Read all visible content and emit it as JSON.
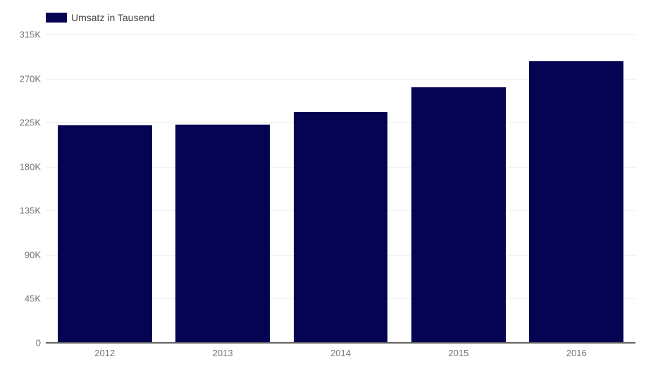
{
  "chart_data": {
    "type": "bar",
    "legend_entries": [
      "Umsatz in Tausend"
    ],
    "legend_position": "top-left",
    "categories": [
      "2012",
      "2013",
      "2014",
      "2015",
      "2016"
    ],
    "series": [
      {
        "name": "Umsatz in Tausend",
        "values": [
          222000,
          223000,
          236000,
          261000,
          288000
        ]
      }
    ],
    "ylim": [
      0,
      315000
    ],
    "yticks": [
      {
        "value": 0,
        "label": "0"
      },
      {
        "value": 45000,
        "label": "45K"
      },
      {
        "value": 90000,
        "label": "90K"
      },
      {
        "value": 135000,
        "label": "135K"
      },
      {
        "value": 180000,
        "label": "180K"
      },
      {
        "value": 225000,
        "label": "225K"
      },
      {
        "value": 270000,
        "label": "270K"
      },
      {
        "value": 315000,
        "label": "315K"
      }
    ],
    "grid": true,
    "colors": {
      "bar": "#050452",
      "gridline": "#ebebeb",
      "axis_line": "#616161",
      "tick_label": "#757575",
      "legend_label": "#424242",
      "background": "#ffffff"
    }
  }
}
